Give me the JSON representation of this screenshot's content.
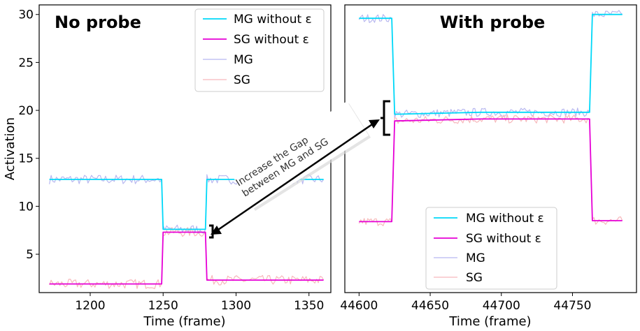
{
  "chart_data": [
    {
      "type": "line",
      "title": "No probe",
      "xlabel": "Time (frame)",
      "ylabel": "Activation",
      "xlim": [
        1165,
        1365
      ],
      "ylim": [
        1,
        31
      ],
      "xticks": [
        1200,
        1250,
        1300,
        1350
      ],
      "yticks": [
        5,
        10,
        15,
        20,
        25,
        30
      ],
      "legend_position": "top-right",
      "series": [
        {
          "name": "MG without ε",
          "color": "#00d8f8",
          "width": 1.8,
          "x": [
            1172,
            1249,
            1250,
            1279,
            1280,
            1360
          ],
          "y": [
            12.8,
            12.8,
            7.6,
            7.6,
            12.8,
            12.8
          ]
        },
        {
          "name": "SG without ε",
          "color": "#e600d6",
          "width": 1.8,
          "x": [
            1172,
            1249,
            1250,
            1279,
            1280,
            1360
          ],
          "y": [
            1.9,
            1.9,
            7.3,
            7.3,
            2.3,
            2.3
          ]
        },
        {
          "name": "MG",
          "color": "#b8b8f0",
          "width": 1.2,
          "noise": 0.5,
          "x": [
            1172,
            1249,
            1250,
            1279,
            1280,
            1360
          ],
          "y": [
            12.8,
            12.8,
            7.6,
            7.6,
            12.8,
            12.8
          ]
        },
        {
          "name": "SG",
          "color": "#f7b8bc",
          "width": 1.2,
          "noise": 0.5,
          "x": [
            1172,
            1249,
            1250,
            1279,
            1280,
            1360
          ],
          "y": [
            1.9,
            1.9,
            7.3,
            7.3,
            2.3,
            2.3
          ]
        }
      ]
    },
    {
      "type": "line",
      "title": "With probe",
      "xlabel": "Time (frame)",
      "ylabel": "",
      "xlim": [
        44590,
        44795
      ],
      "ylim": [
        1,
        31
      ],
      "xticks": [
        44600,
        44650,
        44700,
        44750
      ],
      "yticks": [],
      "legend_position": "bottom-center",
      "series": [
        {
          "name": "MG without ε",
          "color": "#00d8f8",
          "width": 1.8,
          "x": [
            44600,
            44623,
            44625,
            44685,
            44762,
            44764,
            44785
          ],
          "y": [
            29.6,
            29.6,
            19.6,
            19.8,
            19.8,
            30.0,
            30.0
          ]
        },
        {
          "name": "SG without ε",
          "color": "#e600d6",
          "width": 1.8,
          "x": [
            44600,
            44623,
            44625,
            44685,
            44762,
            44764,
            44785
          ],
          "y": [
            8.4,
            8.4,
            18.9,
            19.1,
            19.1,
            8.5,
            8.5
          ]
        },
        {
          "name": "MG",
          "color": "#b8b8f0",
          "width": 1.2,
          "noise": 0.45,
          "x": [
            44600,
            44623,
            44625,
            44685,
            44762,
            44764,
            44785
          ],
          "y": [
            29.6,
            29.6,
            19.6,
            19.8,
            19.8,
            30.0,
            30.0
          ]
        },
        {
          "name": "SG",
          "color": "#f7b8bc",
          "width": 1.2,
          "noise": 0.45,
          "x": [
            44600,
            44623,
            44625,
            44685,
            44762,
            44764,
            44785
          ],
          "y": [
            8.4,
            8.4,
            18.9,
            19.1,
            19.1,
            8.5,
            8.5
          ]
        }
      ]
    }
  ],
  "annotation": {
    "line1": "Increase the Gap",
    "line2": "between MG and SG"
  }
}
